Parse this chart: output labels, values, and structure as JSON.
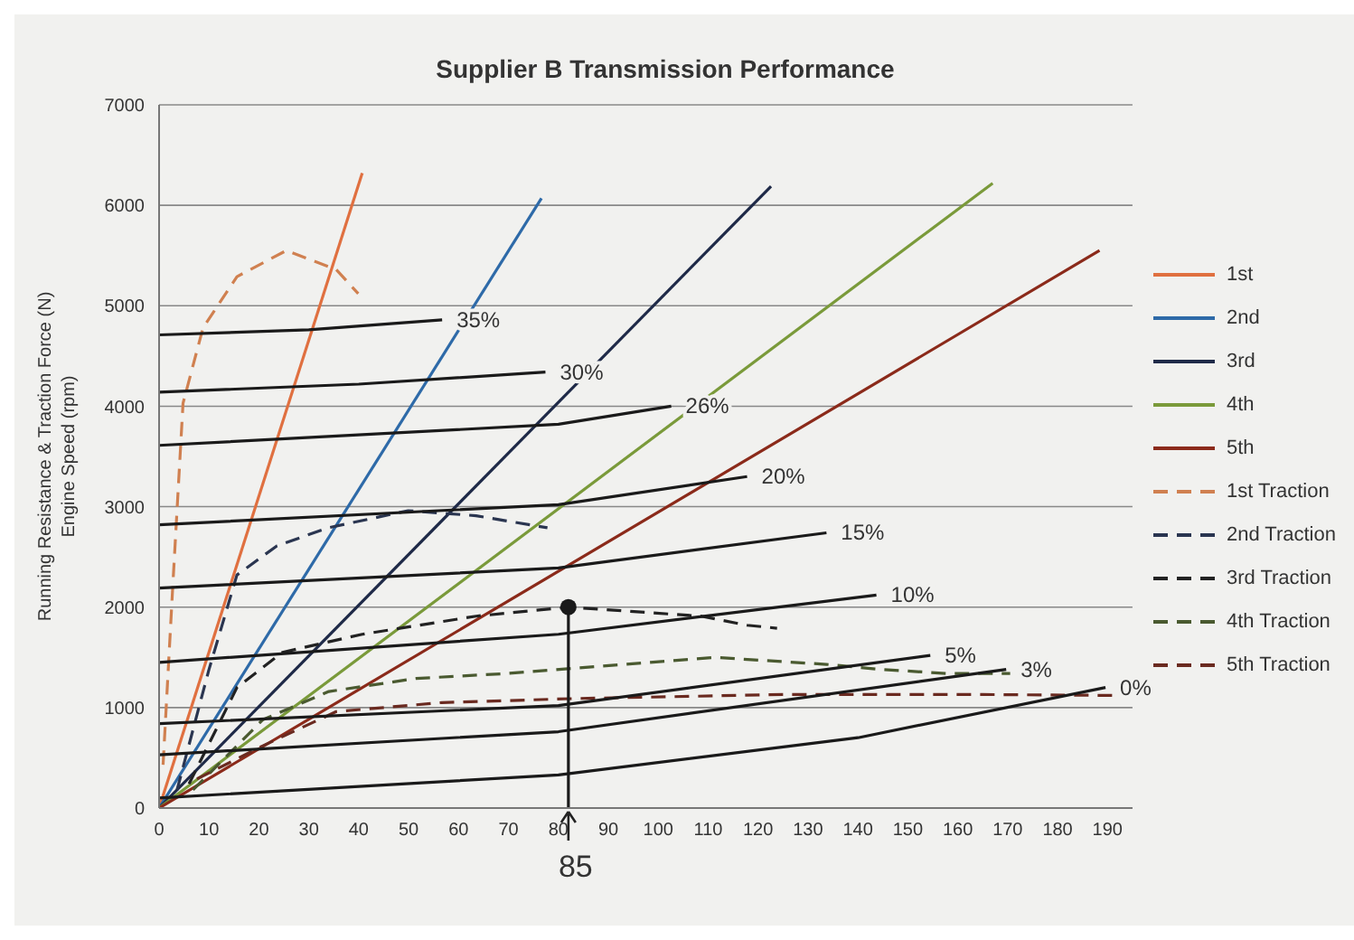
{
  "chart_data": {
    "type": "line",
    "title": "Supplier B Transmission Performance",
    "ylabel": "Running Resistance & Traction Force (N)\nEngine Speed (rpm)",
    "xlim": [
      0,
      195
    ],
    "xticks": [
      0,
      10,
      20,
      30,
      40,
      50,
      60,
      70,
      80,
      90,
      100,
      110,
      120,
      130,
      140,
      150,
      160,
      170,
      180,
      190
    ],
    "ylim": [
      0,
      7000
    ],
    "yticks": [
      0,
      1000,
      2000,
      3000,
      4000,
      5000,
      6000,
      7000
    ],
    "grid": "y",
    "legend": "right",
    "marker": "none",
    "series": [
      {
        "name": "1st",
        "color": "#e07040",
        "line_style": "solid",
        "x": [
          0,
          40.7
        ],
        "values": [
          0,
          6320
        ]
      },
      {
        "name": "2nd",
        "color": "#2e6aa8",
        "line_style": "solid",
        "x": [
          0,
          76.6
        ],
        "values": [
          0,
          6070
        ]
      },
      {
        "name": "3rd",
        "color": "#1f2a48",
        "line_style": "solid",
        "x": [
          0,
          122.6
        ],
        "values": [
          0,
          6190
        ]
      },
      {
        "name": "4th",
        "color": "#7a9a3a",
        "line_style": "solid",
        "x": [
          0,
          167
        ],
        "values": [
          0,
          6220
        ]
      },
      {
        "name": "5th",
        "color": "#8b2a1a",
        "line_style": "solid",
        "x": [
          0,
          188.4
        ],
        "values": [
          0,
          5550
        ]
      },
      {
        "name": "1st Traction",
        "color": "#d08050",
        "line_style": "dashed",
        "x": [
          0.8,
          2.8,
          4.8,
          8.8,
          15.6,
          25.5,
          35.5,
          39.9
        ],
        "values": [
          430,
          2260,
          4030,
          4780,
          5290,
          5550,
          5360,
          5120
        ]
      },
      {
        "name": "2nd Traction",
        "color": "#2a3550",
        "line_style": "dashed",
        "x": [
          3.6,
          10,
          15.6,
          23.6,
          33.9,
          49.9,
          63.5,
          77.8
        ],
        "values": [
          180,
          1380,
          2320,
          2610,
          2790,
          2960,
          2910,
          2790
        ]
      },
      {
        "name": "3rd Traction",
        "color": "#222222",
        "line_style": "dashed",
        "x": [
          6,
          15.6,
          24.7,
          40.7,
          63.5,
          82,
          108.6,
          117.8,
          123.8
        ],
        "values": [
          240,
          1200,
          1550,
          1730,
          1910,
          2000,
          1910,
          1820,
          1790
        ]
      },
      {
        "name": "4th Traction",
        "color": "#4a5a30",
        "line_style": "dashed",
        "x": [
          6.8,
          20.8,
          34,
          51.5,
          69.9,
          111.4,
          133.7,
          144.5,
          157.7,
          170.5
        ],
        "values": [
          180,
          880,
          1160,
          1290,
          1340,
          1500,
          1430,
          1380,
          1340,
          1340
        ]
      },
      {
        "name": "5th Traction",
        "color": "#6a2a20",
        "line_style": "dashed",
        "x": [
          7.6,
          20.8,
          35.5,
          56.7,
          83.4,
          125,
          165,
          194
        ],
        "values": [
          290,
          620,
          960,
          1050,
          1090,
          1130,
          1130,
          1120
        ]
      },
      {
        "color": "#1a1a1a",
        "line_style": "solid",
        "x": [
          0,
          30,
          56.7
        ],
        "values": [
          4710,
          4760,
          4860
        ]
      },
      {
        "color": "#1a1a1a",
        "line_style": "solid",
        "x": [
          0,
          40,
          77.4
        ],
        "values": [
          4140,
          4220,
          4340
        ]
      },
      {
        "color": "#1a1a1a",
        "line_style": "solid",
        "x": [
          0,
          80,
          102.6
        ],
        "values": [
          3610,
          3820,
          4000
        ]
      },
      {
        "color": "#1a1a1a",
        "line_style": "solid",
        "x": [
          0,
          80,
          117.8
        ],
        "values": [
          2820,
          3020,
          3300
        ]
      },
      {
        "color": "#1a1a1a",
        "line_style": "solid",
        "x": [
          0,
          80,
          133.7
        ],
        "values": [
          2190,
          2390,
          2740
        ]
      },
      {
        "color": "#1a1a1a",
        "line_style": "solid",
        "x": [
          0,
          80,
          143.7
        ],
        "values": [
          1450,
          1730,
          2120
        ]
      },
      {
        "color": "#1a1a1a",
        "line_style": "solid",
        "x": [
          0,
          80,
          154.5
        ],
        "values": [
          840,
          1020,
          1520
        ]
      },
      {
        "color": "#1a1a1a",
        "line_style": "solid",
        "x": [
          0,
          80,
          169.7
        ],
        "values": [
          530,
          760,
          1380
        ]
      },
      {
        "color": "#1a1a1a",
        "line_style": "solid",
        "x": [
          0,
          80,
          140,
          189.6
        ],
        "values": [
          100,
          330,
          700,
          1200
        ]
      },
      {
        "color": "#1a1a1a",
        "line_style": "solid",
        "x": [
          82,
          82
        ],
        "values": [
          0,
          2000
        ]
      },
      {
        "type": "scatter",
        "color": "#1a1a1a",
        "marker": "circle",
        "x": [
          82
        ],
        "values": [
          2000
        ]
      }
    ],
    "annotations": [
      {
        "text": "35%",
        "x": 56.7,
        "y": 4860
      },
      {
        "text": "30%",
        "x": 77.4,
        "y": 4340
      },
      {
        "text": "26%",
        "x": 102.6,
        "y": 4000
      },
      {
        "text": "20%",
        "x": 117.8,
        "y": 3300
      },
      {
        "text": "15%",
        "x": 133.7,
        "y": 2740
      },
      {
        "text": "10%",
        "x": 143.7,
        "y": 2120
      },
      {
        "text": "5%",
        "x": 154.5,
        "y": 1520
      },
      {
        "text": "3%",
        "x": 169.7,
        "y": 1375
      },
      {
        "text": "0%",
        "x": 189.6,
        "y": 1200
      },
      {
        "text": "85",
        "x": 82,
        "y": 0
      }
    ]
  }
}
